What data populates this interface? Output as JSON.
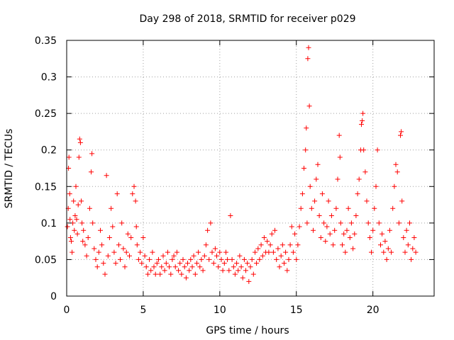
{
  "colors": {
    "series": "#ff0000",
    "grid": "#a0a0a0",
    "axis": "#000000",
    "background": "#ffffff"
  },
  "chart_data": {
    "type": "scatter",
    "title": "Day 298 of 2018, SRMTID for receiver p029",
    "xlabel": "GPS time / hours",
    "ylabel": "SRMTID / TECUs",
    "xlim": [
      0,
      24
    ],
    "ylim": [
      0,
      0.35
    ],
    "grid": true,
    "marker": "+",
    "x_ticks": [
      0,
      5,
      10,
      15,
      20
    ],
    "x_tick_labels": [
      "0",
      "5",
      "10",
      "15",
      "20"
    ],
    "y_ticks": [
      0,
      0.05,
      0.1,
      0.15,
      0.2,
      0.25,
      0.3,
      0.35
    ],
    "y_tick_labels": [
      "0",
      "0.05",
      "0.1",
      "0.15",
      "0.2",
      "0.25",
      "0.3",
      "0.35"
    ],
    "series": [
      {
        "name": "SRMTID",
        "points": [
          [
            0.05,
            0.095
          ],
          [
            0.1,
            0.12
          ],
          [
            0.12,
            0.175
          ],
          [
            0.15,
            0.19
          ],
          [
            0.2,
            0.14
          ],
          [
            0.22,
            0.105
          ],
          [
            0.25,
            0.08
          ],
          [
            0.3,
            0.075
          ],
          [
            0.35,
            0.06
          ],
          [
            0.4,
            0.1
          ],
          [
            0.45,
            0.13
          ],
          [
            0.5,
            0.09
          ],
          [
            0.55,
            0.11
          ],
          [
            0.6,
            0.15
          ],
          [
            0.65,
            0.105
          ],
          [
            0.7,
            0.085
          ],
          [
            0.75,
            0.125
          ],
          [
            0.8,
            0.19
          ],
          [
            0.85,
            0.215
          ],
          [
            0.9,
            0.21
          ],
          [
            0.95,
            0.13
          ],
          [
            1.0,
            0.1
          ],
          [
            1.05,
            0.075
          ],
          [
            1.1,
            0.09
          ],
          [
            1.2,
            0.07
          ],
          [
            1.3,
            0.055
          ],
          [
            1.4,
            0.08
          ],
          [
            1.5,
            0.12
          ],
          [
            1.6,
            0.17
          ],
          [
            1.65,
            0.195
          ],
          [
            1.7,
            0.1
          ],
          [
            1.8,
            0.065
          ],
          [
            1.9,
            0.05
          ],
          [
            2.0,
            0.04
          ],
          [
            2.1,
            0.06
          ],
          [
            2.2,
            0.09
          ],
          [
            2.3,
            0.07
          ],
          [
            2.4,
            0.045
          ],
          [
            2.5,
            0.03
          ],
          [
            2.6,
            0.165
          ],
          [
            2.7,
            0.055
          ],
          [
            2.8,
            0.08
          ],
          [
            2.9,
            0.12
          ],
          [
            3.0,
            0.095
          ],
          [
            3.1,
            0.06
          ],
          [
            3.2,
            0.045
          ],
          [
            3.3,
            0.14
          ],
          [
            3.4,
            0.07
          ],
          [
            3.5,
            0.05
          ],
          [
            3.6,
            0.1
          ],
          [
            3.7,
            0.065
          ],
          [
            3.8,
            0.04
          ],
          [
            3.9,
            0.06
          ],
          [
            4.0,
            0.085
          ],
          [
            4.1,
            0.055
          ],
          [
            4.2,
            0.08
          ],
          [
            4.3,
            0.14
          ],
          [
            4.4,
            0.15
          ],
          [
            4.5,
            0.13
          ],
          [
            4.55,
            0.095
          ],
          [
            4.6,
            0.07
          ],
          [
            4.7,
            0.05
          ],
          [
            4.8,
            0.06
          ],
          [
            4.9,
            0.045
          ],
          [
            5.0,
            0.08
          ],
          [
            5.1,
            0.055
          ],
          [
            5.2,
            0.04
          ],
          [
            5.3,
            0.03
          ],
          [
            5.4,
            0.05
          ],
          [
            5.5,
            0.035
          ],
          [
            5.6,
            0.06
          ],
          [
            5.7,
            0.04
          ],
          [
            5.8,
            0.03
          ],
          [
            5.9,
            0.045
          ],
          [
            6.0,
            0.05
          ],
          [
            6.1,
            0.03
          ],
          [
            6.2,
            0.04
          ],
          [
            6.3,
            0.055
          ],
          [
            6.4,
            0.035
          ],
          [
            6.5,
            0.045
          ],
          [
            6.6,
            0.06
          ],
          [
            6.7,
            0.04
          ],
          [
            6.8,
            0.03
          ],
          [
            6.9,
            0.05
          ],
          [
            7.0,
            0.055
          ],
          [
            7.1,
            0.04
          ],
          [
            7.2,
            0.06
          ],
          [
            7.3,
            0.035
          ],
          [
            7.4,
            0.045
          ],
          [
            7.5,
            0.03
          ],
          [
            7.6,
            0.05
          ],
          [
            7.7,
            0.04
          ],
          [
            7.8,
            0.025
          ],
          [
            7.9,
            0.045
          ],
          [
            8.0,
            0.035
          ],
          [
            8.1,
            0.05
          ],
          [
            8.2,
            0.04
          ],
          [
            8.3,
            0.055
          ],
          [
            8.4,
            0.03
          ],
          [
            8.5,
            0.045
          ],
          [
            8.6,
            0.06
          ],
          [
            8.7,
            0.04
          ],
          [
            8.8,
            0.05
          ],
          [
            8.9,
            0.035
          ],
          [
            9.0,
            0.055
          ],
          [
            9.1,
            0.07
          ],
          [
            9.2,
            0.09
          ],
          [
            9.3,
            0.05
          ],
          [
            9.4,
            0.1
          ],
          [
            9.5,
            0.06
          ],
          [
            9.6,
            0.045
          ],
          [
            9.7,
            0.065
          ],
          [
            9.8,
            0.055
          ],
          [
            9.9,
            0.04
          ],
          [
            10.0,
            0.06
          ],
          [
            10.1,
            0.05
          ],
          [
            10.2,
            0.035
          ],
          [
            10.3,
            0.045
          ],
          [
            10.4,
            0.06
          ],
          [
            10.5,
            0.05
          ],
          [
            10.6,
            0.035
          ],
          [
            10.7,
            0.11
          ],
          [
            10.8,
            0.05
          ],
          [
            10.9,
            0.04
          ],
          [
            11.0,
            0.03
          ],
          [
            11.1,
            0.045
          ],
          [
            11.2,
            0.035
          ],
          [
            11.3,
            0.055
          ],
          [
            11.4,
            0.04
          ],
          [
            11.5,
            0.025
          ],
          [
            11.6,
            0.05
          ],
          [
            11.7,
            0.035
          ],
          [
            11.8,
            0.045
          ],
          [
            11.9,
            0.02
          ],
          [
            12.0,
            0.04
          ],
          [
            12.1,
            0.05
          ],
          [
            12.2,
            0.03
          ],
          [
            12.3,
            0.06
          ],
          [
            12.4,
            0.045
          ],
          [
            12.5,
            0.065
          ],
          [
            12.6,
            0.05
          ],
          [
            12.7,
            0.07
          ],
          [
            12.8,
            0.055
          ],
          [
            12.9,
            0.08
          ],
          [
            13.0,
            0.06
          ],
          [
            13.1,
            0.075
          ],
          [
            13.2,
            0.06
          ],
          [
            13.3,
            0.07
          ],
          [
            13.4,
            0.085
          ],
          [
            13.5,
            0.06
          ],
          [
            13.6,
            0.09
          ],
          [
            13.7,
            0.05
          ],
          [
            13.8,
            0.065
          ],
          [
            13.9,
            0.04
          ],
          [
            14.0,
            0.055
          ],
          [
            14.1,
            0.07
          ],
          [
            14.2,
            0.045
          ],
          [
            14.3,
            0.06
          ],
          [
            14.4,
            0.035
          ],
          [
            14.5,
            0.05
          ],
          [
            14.6,
            0.07
          ],
          [
            14.7,
            0.095
          ],
          [
            14.8,
            0.06
          ],
          [
            14.9,
            0.085
          ],
          [
            15.0,
            0.05
          ],
          [
            15.1,
            0.07
          ],
          [
            15.2,
            0.095
          ],
          [
            15.3,
            0.12
          ],
          [
            15.4,
            0.14
          ],
          [
            15.5,
            0.175
          ],
          [
            15.6,
            0.2
          ],
          [
            15.65,
            0.23
          ],
          [
            15.7,
            0.1
          ],
          [
            15.75,
            0.325
          ],
          [
            15.8,
            0.34
          ],
          [
            15.85,
            0.26
          ],
          [
            15.9,
            0.15
          ],
          [
            16.0,
            0.12
          ],
          [
            16.1,
            0.09
          ],
          [
            16.2,
            0.13
          ],
          [
            16.3,
            0.16
          ],
          [
            16.4,
            0.18
          ],
          [
            16.5,
            0.11
          ],
          [
            16.6,
            0.08
          ],
          [
            16.7,
            0.14
          ],
          [
            16.8,
            0.1
          ],
          [
            16.9,
            0.075
          ],
          [
            17.0,
            0.095
          ],
          [
            17.1,
            0.13
          ],
          [
            17.2,
            0.085
          ],
          [
            17.3,
            0.11
          ],
          [
            17.4,
            0.07
          ],
          [
            17.5,
            0.09
          ],
          [
            17.6,
            0.12
          ],
          [
            17.7,
            0.16
          ],
          [
            17.8,
            0.22
          ],
          [
            17.85,
            0.19
          ],
          [
            17.9,
            0.1
          ],
          [
            18.0,
            0.07
          ],
          [
            18.1,
            0.085
          ],
          [
            18.2,
            0.06
          ],
          [
            18.3,
            0.09
          ],
          [
            18.4,
            0.12
          ],
          [
            18.5,
            0.08
          ],
          [
            18.6,
            0.1
          ],
          [
            18.7,
            0.065
          ],
          [
            18.8,
            0.085
          ],
          [
            18.9,
            0.11
          ],
          [
            19.0,
            0.14
          ],
          [
            19.1,
            0.16
          ],
          [
            19.2,
            0.2
          ],
          [
            19.25,
            0.235
          ],
          [
            19.3,
            0.24
          ],
          [
            19.35,
            0.25
          ],
          [
            19.4,
            0.2
          ],
          [
            19.5,
            0.17
          ],
          [
            19.6,
            0.13
          ],
          [
            19.7,
            0.1
          ],
          [
            19.8,
            0.08
          ],
          [
            19.9,
            0.06
          ],
          [
            20.0,
            0.09
          ],
          [
            20.1,
            0.12
          ],
          [
            20.2,
            0.15
          ],
          [
            20.3,
            0.2
          ],
          [
            20.4,
            0.1
          ],
          [
            20.5,
            0.07
          ],
          [
            20.6,
            0.085
          ],
          [
            20.7,
            0.06
          ],
          [
            20.8,
            0.075
          ],
          [
            20.9,
            0.05
          ],
          [
            21.0,
            0.065
          ],
          [
            21.1,
            0.09
          ],
          [
            21.2,
            0.06
          ],
          [
            21.3,
            0.12
          ],
          [
            21.4,
            0.15
          ],
          [
            21.5,
            0.18
          ],
          [
            21.6,
            0.17
          ],
          [
            21.7,
            0.1
          ],
          [
            21.8,
            0.22
          ],
          [
            21.85,
            0.225
          ],
          [
            21.9,
            0.13
          ],
          [
            22.0,
            0.08
          ],
          [
            22.1,
            0.06
          ],
          [
            22.2,
            0.09
          ],
          [
            22.3,
            0.07
          ],
          [
            22.4,
            0.1
          ],
          [
            22.5,
            0.05
          ],
          [
            22.6,
            0.065
          ],
          [
            22.7,
            0.08
          ],
          [
            22.8,
            0.06
          ]
        ]
      }
    ]
  }
}
